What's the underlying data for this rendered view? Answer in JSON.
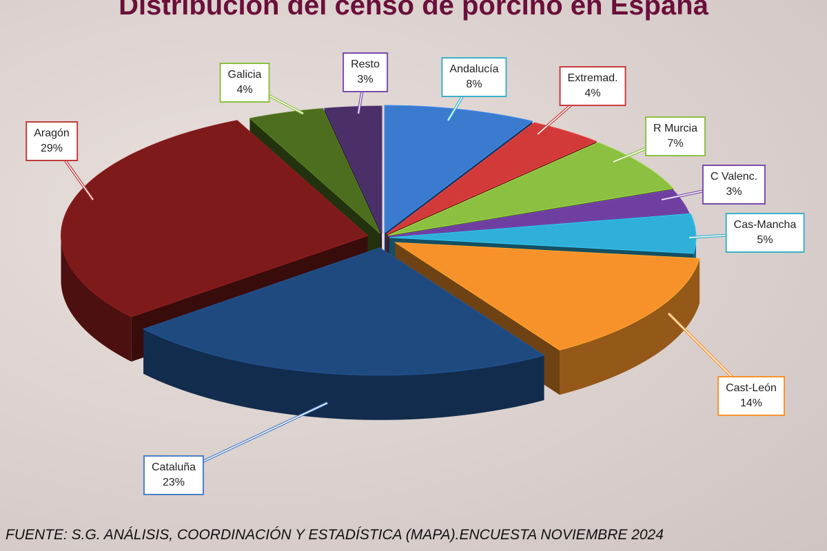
{
  "chart_data": {
    "type": "pie",
    "style": "3d exploded",
    "title": "Distribución del censo de porcino en España",
    "source": "FUENTE: S.G. ANÁLISIS, COORDINACIÓN Y ESTADÍSTICA (MAPA).ENCUESTA NOVIEMBRE 2024",
    "slices": [
      {
        "label": "Andalucía",
        "value": 8,
        "display": "8%",
        "color": "#3a7bd0",
        "border": "#3ab0c8"
      },
      {
        "label": "Extremad.",
        "value": 4,
        "display": "4%",
        "color": "#d23a3a",
        "border": "#c83a3a"
      },
      {
        "label": "R Murcia",
        "value": 7,
        "display": "7%",
        "color": "#8cc040",
        "border": "#8cc040"
      },
      {
        "label": "C Valenc.",
        "value": 3,
        "display": "3%",
        "color": "#6e3fa0",
        "border": "#7a4aaa"
      },
      {
        "label": "Cas-Mancha",
        "value": 5,
        "display": "5%",
        "color": "#2fb0d8",
        "border": "#3ab0c8"
      },
      {
        "label": "Cast-León",
        "value": 14,
        "display": "14%",
        "color": "#f7922a",
        "border": "#f7922a"
      },
      {
        "label": "Cataluña",
        "value": 23,
        "display": "23%",
        "color": "#1e4a80",
        "border": "#4a7ec8"
      },
      {
        "label": "Aragón",
        "value": 29,
        "display": "29%",
        "color": "#7e1a1a",
        "border": "#c03a3a"
      },
      {
        "label": "Galicia",
        "value": 4,
        "display": "4%",
        "color": "#4c6e1e",
        "border": "#8cc040"
      },
      {
        "label": "Resto",
        "value": 3,
        "display": "3%",
        "color": "#4a2f68",
        "border": "#7a4aaa"
      }
    ]
  }
}
